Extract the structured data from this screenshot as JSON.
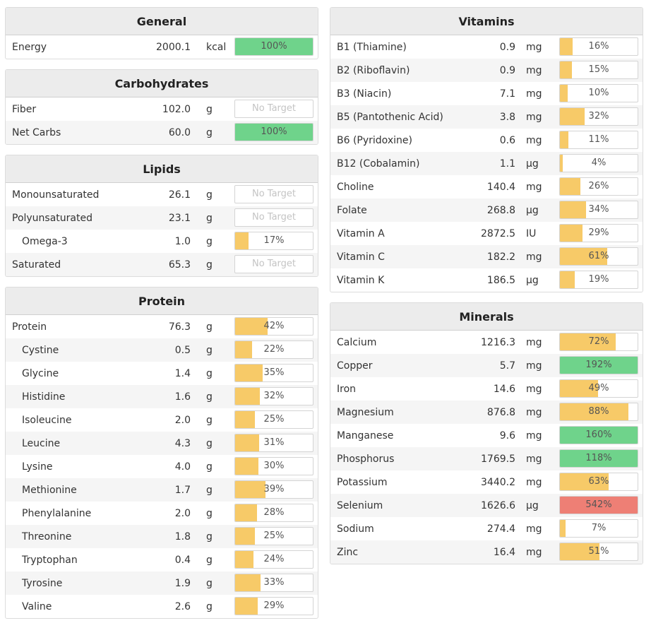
{
  "colors": {
    "yellow": "#f7ca68",
    "green": "#6fd38b",
    "red": "#ee7f75",
    "header_bg": "#ececec"
  },
  "left_column": [
    {
      "title": "General",
      "rows": [
        {
          "name": "Energy",
          "amount": "2000.1",
          "unit": "kcal",
          "label": "100%",
          "fill": 100,
          "color": "green"
        }
      ]
    },
    {
      "title": "Carbohydrates",
      "rows": [
        {
          "name": "Fiber",
          "amount": "102.0",
          "unit": "g",
          "label": "No Target",
          "fill": 0,
          "color": "none"
        },
        {
          "name": "Net Carbs",
          "amount": "60.0",
          "unit": "g",
          "label": "100%",
          "fill": 100,
          "color": "green"
        }
      ]
    },
    {
      "title": "Lipids",
      "rows": [
        {
          "name": "Monounsaturated",
          "amount": "26.1",
          "unit": "g",
          "label": "No Target",
          "fill": 0,
          "color": "none"
        },
        {
          "name": "Polyunsaturated",
          "amount": "23.1",
          "unit": "g",
          "label": "No Target",
          "fill": 0,
          "color": "none"
        },
        {
          "name": "Omega-3",
          "amount": "1.0",
          "unit": "g",
          "label": "17%",
          "fill": 17,
          "color": "yellow",
          "indent": true
        },
        {
          "name": "Saturated",
          "amount": "65.3",
          "unit": "g",
          "label": "No Target",
          "fill": 0,
          "color": "none"
        }
      ]
    },
    {
      "title": "Protein",
      "rows": [
        {
          "name": "Protein",
          "amount": "76.3",
          "unit": "g",
          "label": "42%",
          "fill": 42,
          "color": "yellow"
        },
        {
          "name": "Cystine",
          "amount": "0.5",
          "unit": "g",
          "label": "22%",
          "fill": 22,
          "color": "yellow",
          "indent": true
        },
        {
          "name": "Glycine",
          "amount": "1.4",
          "unit": "g",
          "label": "35%",
          "fill": 35,
          "color": "yellow",
          "indent": true
        },
        {
          "name": "Histidine",
          "amount": "1.6",
          "unit": "g",
          "label": "32%",
          "fill": 32,
          "color": "yellow",
          "indent": true
        },
        {
          "name": "Isoleucine",
          "amount": "2.0",
          "unit": "g",
          "label": "25%",
          "fill": 25,
          "color": "yellow",
          "indent": true
        },
        {
          "name": "Leucine",
          "amount": "4.3",
          "unit": "g",
          "label": "31%",
          "fill": 31,
          "color": "yellow",
          "indent": true
        },
        {
          "name": "Lysine",
          "amount": "4.0",
          "unit": "g",
          "label": "30%",
          "fill": 30,
          "color": "yellow",
          "indent": true
        },
        {
          "name": "Methionine",
          "amount": "1.7",
          "unit": "g",
          "label": "39%",
          "fill": 39,
          "color": "yellow",
          "indent": true
        },
        {
          "name": "Phenylalanine",
          "amount": "2.0",
          "unit": "g",
          "label": "28%",
          "fill": 28,
          "color": "yellow",
          "indent": true
        },
        {
          "name": "Threonine",
          "amount": "1.8",
          "unit": "g",
          "label": "25%",
          "fill": 25,
          "color": "yellow",
          "indent": true
        },
        {
          "name": "Tryptophan",
          "amount": "0.4",
          "unit": "g",
          "label": "24%",
          "fill": 24,
          "color": "yellow",
          "indent": true
        },
        {
          "name": "Tyrosine",
          "amount": "1.9",
          "unit": "g",
          "label": "33%",
          "fill": 33,
          "color": "yellow",
          "indent": true
        },
        {
          "name": "Valine",
          "amount": "2.6",
          "unit": "g",
          "label": "29%",
          "fill": 29,
          "color": "yellow",
          "indent": true
        }
      ]
    }
  ],
  "right_column": [
    {
      "title": "Vitamins",
      "rows": [
        {
          "name": "B1 (Thiamine)",
          "amount": "0.9",
          "unit": "mg",
          "label": "16%",
          "fill": 16,
          "color": "yellow"
        },
        {
          "name": "B2 (Riboflavin)",
          "amount": "0.9",
          "unit": "mg",
          "label": "15%",
          "fill": 15,
          "color": "yellow"
        },
        {
          "name": "B3 (Niacin)",
          "amount": "7.1",
          "unit": "mg",
          "label": "10%",
          "fill": 10,
          "color": "yellow"
        },
        {
          "name": "B5 (Pantothenic Acid)",
          "amount": "3.8",
          "unit": "mg",
          "label": "32%",
          "fill": 32,
          "color": "yellow"
        },
        {
          "name": "B6 (Pyridoxine)",
          "amount": "0.6",
          "unit": "mg",
          "label": "11%",
          "fill": 11,
          "color": "yellow"
        },
        {
          "name": "B12 (Cobalamin)",
          "amount": "1.1",
          "unit": "µg",
          "label": "4%",
          "fill": 4,
          "color": "yellow"
        },
        {
          "name": "Choline",
          "amount": "140.4",
          "unit": "mg",
          "label": "26%",
          "fill": 26,
          "color": "yellow"
        },
        {
          "name": "Folate",
          "amount": "268.8",
          "unit": "µg",
          "label": "34%",
          "fill": 34,
          "color": "yellow"
        },
        {
          "name": "Vitamin A",
          "amount": "2872.5",
          "unit": "IU",
          "label": "29%",
          "fill": 29,
          "color": "yellow"
        },
        {
          "name": "Vitamin C",
          "amount": "182.2",
          "unit": "mg",
          "label": "61%",
          "fill": 61,
          "color": "yellow"
        },
        {
          "name": "Vitamin K",
          "amount": "186.5",
          "unit": "µg",
          "label": "19%",
          "fill": 19,
          "color": "yellow"
        }
      ]
    },
    {
      "title": "Minerals",
      "rows": [
        {
          "name": "Calcium",
          "amount": "1216.3",
          "unit": "mg",
          "label": "72%",
          "fill": 72,
          "color": "yellow"
        },
        {
          "name": "Copper",
          "amount": "5.7",
          "unit": "mg",
          "label": "192%",
          "fill": 100,
          "color": "green"
        },
        {
          "name": "Iron",
          "amount": "14.6",
          "unit": "mg",
          "label": "49%",
          "fill": 49,
          "color": "yellow"
        },
        {
          "name": "Magnesium",
          "amount": "876.8",
          "unit": "mg",
          "label": "88%",
          "fill": 88,
          "color": "yellow"
        },
        {
          "name": "Manganese",
          "amount": "9.6",
          "unit": "mg",
          "label": "160%",
          "fill": 100,
          "color": "green"
        },
        {
          "name": "Phosphorus",
          "amount": "1769.5",
          "unit": "mg",
          "label": "118%",
          "fill": 100,
          "color": "green"
        },
        {
          "name": "Potassium",
          "amount": "3440.2",
          "unit": "mg",
          "label": "63%",
          "fill": 63,
          "color": "yellow"
        },
        {
          "name": "Selenium",
          "amount": "1626.6",
          "unit": "µg",
          "label": "542%",
          "fill": 100,
          "color": "red"
        },
        {
          "name": "Sodium",
          "amount": "274.4",
          "unit": "mg",
          "label": "7%",
          "fill": 7,
          "color": "yellow"
        },
        {
          "name": "Zinc",
          "amount": "16.4",
          "unit": "mg",
          "label": "51%",
          "fill": 51,
          "color": "yellow"
        }
      ]
    }
  ]
}
